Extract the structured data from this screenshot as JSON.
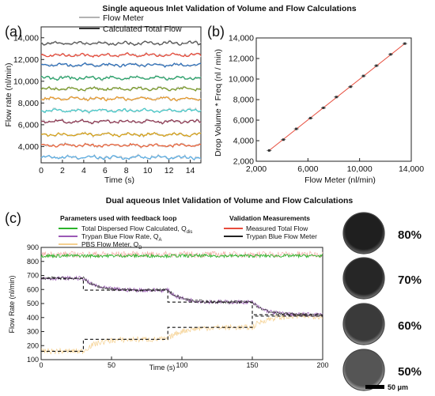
{
  "header_top": "Single aqueous Inlet Validation of Volume and Flow Calculations",
  "header_bottom": "Dual aqueous Inlet Validation of Volume and Flow Calculations",
  "panel_labels": [
    "(a)",
    "(b)",
    "(c)"
  ],
  "scale_bar_label": "50 μm",
  "colors": {
    "flow_meter": "#9a9a9a",
    "calculated_total": "#333333",
    "total_dispersed": "#2bb32b",
    "trypan_rate": "#9b59b6",
    "pbs_meter": "#f5d08f",
    "measured_total": "#e74c3c",
    "trypan_meter": "#222222",
    "fit_line": "#e74c3c"
  },
  "chart_data": [
    {
      "type": "line",
      "panel": "(a)",
      "xlabel": "Time (s)",
      "ylabel": "Flow rate (nl/min)",
      "xlim": [
        0,
        15
      ],
      "ylim": [
        2500,
        15000
      ],
      "x_ticks": [
        0,
        2,
        4,
        6,
        8,
        10,
        12,
        14
      ],
      "y_ticks": [
        4000,
        6000,
        8000,
        10000,
        12000,
        14000
      ],
      "y_tick_labels": [
        "4,000",
        "6,000",
        "8,000",
        "10,000",
        "12,000",
        "14,000"
      ],
      "legend": [
        "Flow Meter",
        "Calculated Total Flow"
      ],
      "legend_placement": "top",
      "series": [
        {
          "level": 3000,
          "color": "#5dade2"
        },
        {
          "level": 4100,
          "color": "#e8633b"
        },
        {
          "level": 5100,
          "color": "#d4a017"
        },
        {
          "level": 6300,
          "color": "#8e3b55"
        },
        {
          "level": 7300,
          "color": "#48c9c9"
        },
        {
          "level": 8400,
          "color": "#e69a2e"
        },
        {
          "level": 9300,
          "color": "#7a9a2a"
        },
        {
          "level": 10300,
          "color": "#27a36a"
        },
        {
          "level": 11500,
          "color": "#2e6fb8"
        },
        {
          "level": 12400,
          "color": "#e74c3c"
        },
        {
          "level": 13500,
          "color": "#555555"
        }
      ]
    },
    {
      "type": "scatter",
      "panel": "(b)",
      "xlabel": "Flow Meter (nl/min)",
      "ylabel": "Drop Volume * Freq (nl / min)",
      "xlim": [
        2000,
        14000
      ],
      "ylim": [
        2000,
        14000
      ],
      "x_ticks": [
        2000,
        6000,
        10000,
        14000
      ],
      "x_tick_labels": [
        "2,000",
        "6,000",
        "10,000",
        "14,000"
      ],
      "y_ticks": [
        2000,
        4000,
        6000,
        8000,
        10000,
        12000,
        14000
      ],
      "y_tick_labels": [
        "2,000",
        "4,000",
        "6,000",
        "8,000",
        "10,000",
        "12,000",
        "14,000"
      ],
      "x": [
        3000,
        4100,
        5100,
        6200,
        7200,
        8200,
        9300,
        10300,
        11300,
        12400,
        13500
      ],
      "y": [
        3050,
        4100,
        5150,
        6200,
        7200,
        8250,
        9250,
        10300,
        11300,
        12400,
        13450
      ]
    },
    {
      "type": "line",
      "panel": "(c)",
      "xlabel": "Time (s)",
      "ylabel": "Flow Rate (nl/min)",
      "xlim": [
        0,
        200
      ],
      "ylim": [
        100,
        900
      ],
      "x_ticks": [
        0,
        50,
        100,
        150,
        200
      ],
      "y_ticks": [
        100,
        200,
        300,
        400,
        500,
        600,
        700,
        800,
        900
      ],
      "legend_group_left": "Parameters used with feedback loop",
      "legend_group_right": "Validation Measurements",
      "legend": [
        "Total Dispersed Flow Calculated, Q",
        "Trypan Blue Flow Rate, Q",
        "PBS Flow Meter, Q",
        "Measured Total Flow",
        "Trypan Blue Flow Meter"
      ],
      "legend_subscripts": [
        "dis",
        "A",
        "B",
        "",
        ""
      ],
      "steps_setpoint": [
        [
          0,
          160
        ],
        [
          30,
          160
        ],
        [
          30,
          245
        ],
        [
          90,
          245
        ],
        [
          90,
          330
        ],
        [
          150,
          330
        ],
        [
          150,
          410
        ],
        [
          200,
          410
        ]
      ],
      "steps_trypan_setpoint": [
        [
          0,
          680
        ],
        [
          30,
          680
        ],
        [
          30,
          595
        ],
        [
          90,
          595
        ],
        [
          90,
          510
        ],
        [
          150,
          510
        ],
        [
          150,
          420
        ],
        [
          200,
          420
        ]
      ],
      "total_level": 840
    }
  ],
  "droplets": [
    {
      "label": "80%"
    },
    {
      "label": "70%"
    },
    {
      "label": "60%"
    },
    {
      "label": "50%"
    }
  ]
}
